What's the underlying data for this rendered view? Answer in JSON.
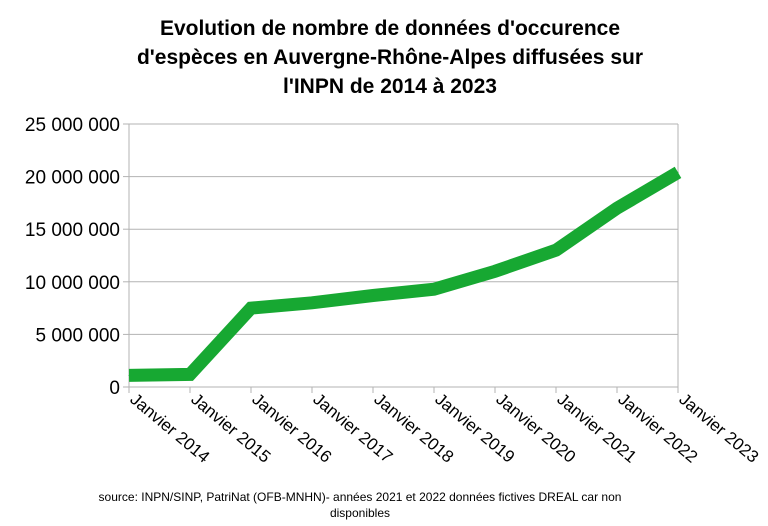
{
  "chart_data": {
    "type": "line",
    "title_lines": [
      "Evolution de nombre de données d'occurence",
      "d'espèces en Auvergne-Rhône-Alpes diffusées sur",
      "l'INPN de 2014 à 2023"
    ],
    "categories": [
      "Janvier 2014",
      "Janvier 2015",
      "Janvier 2016",
      "Janvier 2017",
      "Janvier 2018",
      "Janvier 2019",
      "Janvier 2020",
      "Janvier 2021",
      "Janvier 2022",
      "Janvier 2023"
    ],
    "series": [
      {
        "values": [
          1100000,
          1200000,
          7500000,
          8000000,
          8700000,
          9300000,
          11000000,
          13000000,
          17000000,
          20400000
        ],
        "color": "#17a832"
      }
    ],
    "ylim": [
      0,
      25000000
    ],
    "yticks": [
      0,
      5000000,
      10000000,
      15000000,
      20000000,
      25000000
    ],
    "ytick_labels": [
      "0",
      "5 000 000",
      "10 000 000",
      "15 000 000",
      "20 000 000",
      "25 000 000"
    ],
    "grid": true,
    "legend": "none"
  },
  "footer": {
    "source_line1": "source: INPN/SINP, PatriNat (OFB-MNHN)- années 2021 et 2022 données fictives DREAL car non",
    "source_line2": "disponibles"
  }
}
